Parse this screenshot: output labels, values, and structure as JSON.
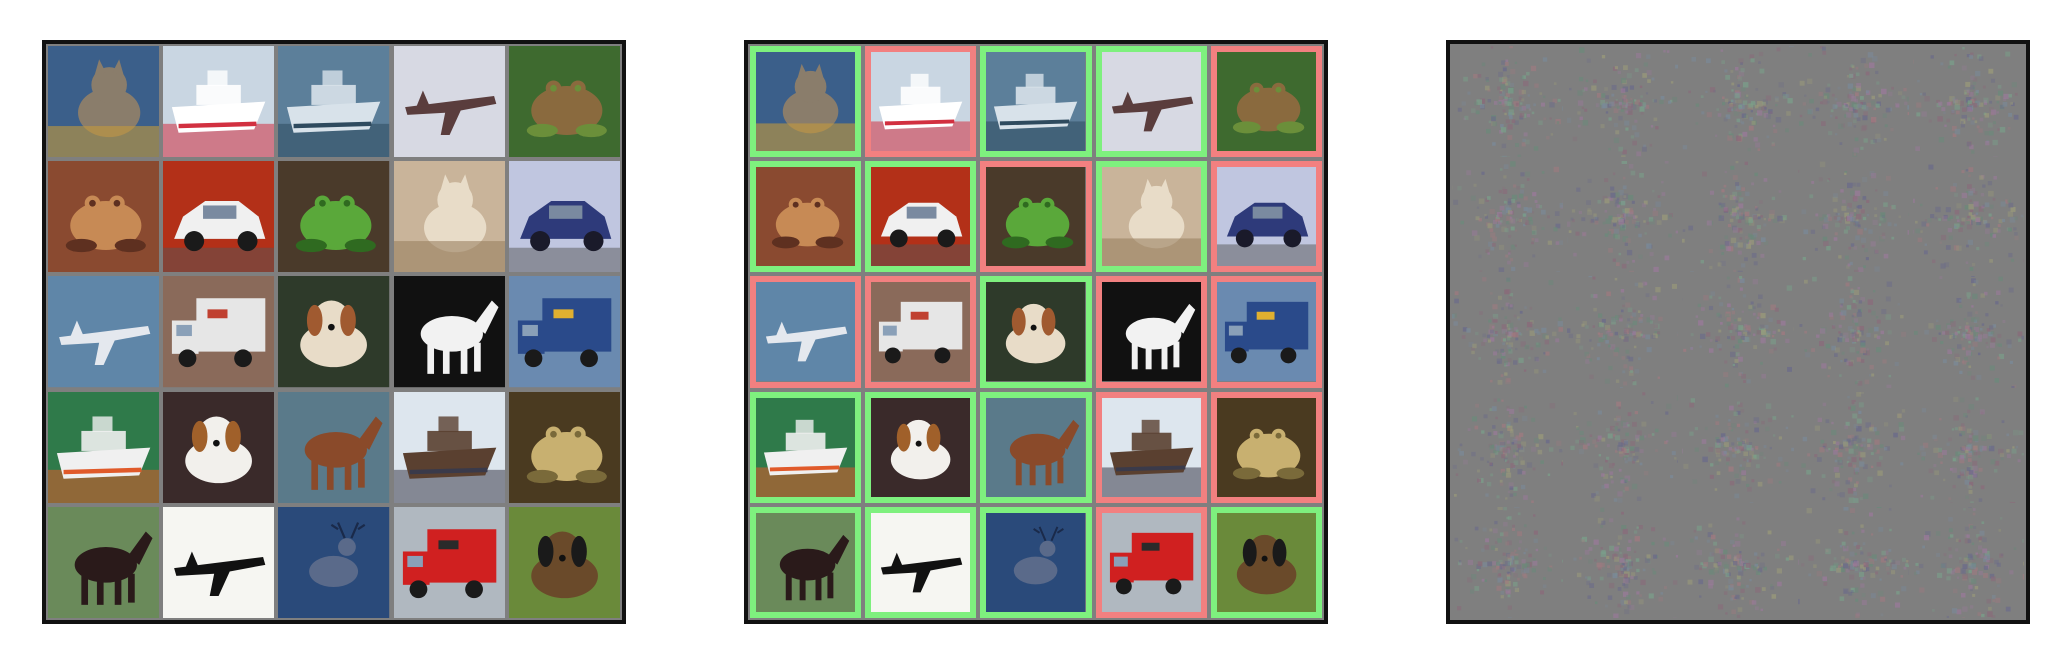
{
  "figure": {
    "panels": [
      "clean-images",
      "adversarial-images",
      "perturbations"
    ]
  },
  "colors": {
    "correct": "#7ef07e",
    "incorrect": "#f28080",
    "frame": "#111111",
    "background": "#7f7f7f"
  },
  "tiles": [
    {
      "subject": "cat",
      "icon": "cat-icon",
      "bg": "#3b5f8a",
      "fg": "#8a7d6b",
      "accent": "#c49a3a",
      "adv": "correct"
    },
    {
      "subject": "ship",
      "icon": "ship-icon",
      "bg": "#c9d6e2",
      "fg": "#ffffff",
      "accent": "#d23040",
      "adv": "incorrect"
    },
    {
      "subject": "ship",
      "icon": "ship-icon",
      "bg": "#5c7f9a",
      "fg": "#d8e2ea",
      "accent": "#2e4a5e",
      "adv": "correct"
    },
    {
      "subject": "airplane",
      "icon": "airplane-icon",
      "bg": "#d7d9e3",
      "fg": "#5a3d3d",
      "accent": "#c03040",
      "adv": "correct"
    },
    {
      "subject": "frog",
      "icon": "frog-icon",
      "bg": "#3e6a2f",
      "fg": "#8a6a3e",
      "accent": "#6b8f3a",
      "adv": "incorrect"
    },
    {
      "subject": "frog",
      "icon": "frog-icon",
      "bg": "#8a4a30",
      "fg": "#c78a55",
      "accent": "#5e3020",
      "adv": "correct"
    },
    {
      "subject": "automobile",
      "icon": "car-icon",
      "bg": "#b33018",
      "fg": "#f0f0f0",
      "accent": "#1a1a1a",
      "adv": "correct"
    },
    {
      "subject": "frog",
      "icon": "frog-icon",
      "bg": "#4a3a2a",
      "fg": "#5aa83a",
      "accent": "#2f6a20",
      "adv": "incorrect"
    },
    {
      "subject": "cat",
      "icon": "cat-icon",
      "bg": "#c9b49a",
      "fg": "#e8dcc8",
      "accent": "#9a8060",
      "adv": "correct"
    },
    {
      "subject": "automobile",
      "icon": "car-icon",
      "bg": "#c0c6e0",
      "fg": "#2e3a7a",
      "accent": "#1a1a2a",
      "adv": "incorrect"
    },
    {
      "subject": "airplane",
      "icon": "airplane-icon",
      "bg": "#5f86a8",
      "fg": "#e4e8ee",
      "accent": "#b0bccc",
      "adv": "incorrect"
    },
    {
      "subject": "truck",
      "icon": "truck-icon",
      "bg": "#8a6a5a",
      "fg": "#e6e6e6",
      "accent": "#c04030",
      "adv": "incorrect"
    },
    {
      "subject": "dog",
      "icon": "dog-icon",
      "bg": "#2e3a2a",
      "fg": "#e8dcc8",
      "accent": "#a05a30",
      "adv": "correct"
    },
    {
      "subject": "horse",
      "icon": "horse-icon",
      "bg": "#111111",
      "fg": "#f2f2f2",
      "accent": "#888888",
      "adv": "incorrect"
    },
    {
      "subject": "truck",
      "icon": "truck-icon",
      "bg": "#6a8ab0",
      "fg": "#2a4a8a",
      "accent": "#e0b030",
      "adv": "incorrect"
    },
    {
      "subject": "ship",
      "icon": "ship-icon",
      "bg": "#2f7a4a",
      "fg": "#f0f0f0",
      "accent": "#e05a2a",
      "adv": "correct"
    },
    {
      "subject": "dog",
      "icon": "dog-icon",
      "bg": "#3a2a2a",
      "fg": "#f2f0ec",
      "accent": "#a0602a",
      "adv": "correct"
    },
    {
      "subject": "horse",
      "icon": "horse-icon",
      "bg": "#5a7a8a",
      "fg": "#8a4a2a",
      "accent": "#3a2a20",
      "adv": "correct"
    },
    {
      "subject": "ship",
      "icon": "ship-icon",
      "bg": "#dde6ee",
      "fg": "#5a4030",
      "accent": "#3a3a4a",
      "adv": "incorrect"
    },
    {
      "subject": "frog",
      "icon": "frog-icon",
      "bg": "#4a3a20",
      "fg": "#c8b070",
      "accent": "#7a6a3a",
      "adv": "incorrect"
    },
    {
      "subject": "horse",
      "icon": "horse-icon",
      "bg": "#6a8a5a",
      "fg": "#2a1a1a",
      "accent": "#f0f0f0",
      "adv": "correct"
    },
    {
      "subject": "airplane",
      "icon": "airplane-icon",
      "bg": "#f6f6f2",
      "fg": "#111111",
      "accent": "#333333",
      "adv": "correct"
    },
    {
      "subject": "deer",
      "icon": "deer-icon",
      "bg": "#2a4a7a",
      "fg": "#5a6a8a",
      "accent": "#1a2a4a",
      "adv": "correct"
    },
    {
      "subject": "truck",
      "icon": "truck-icon",
      "bg": "#b0b8c0",
      "fg": "#d02020",
      "accent": "#2a2a2a",
      "adv": "incorrect"
    },
    {
      "subject": "dog",
      "icon": "dog-icon",
      "bg": "#6a8a3a",
      "fg": "#6a4a2a",
      "accent": "#1a1a1a",
      "adv": "correct"
    }
  ]
}
